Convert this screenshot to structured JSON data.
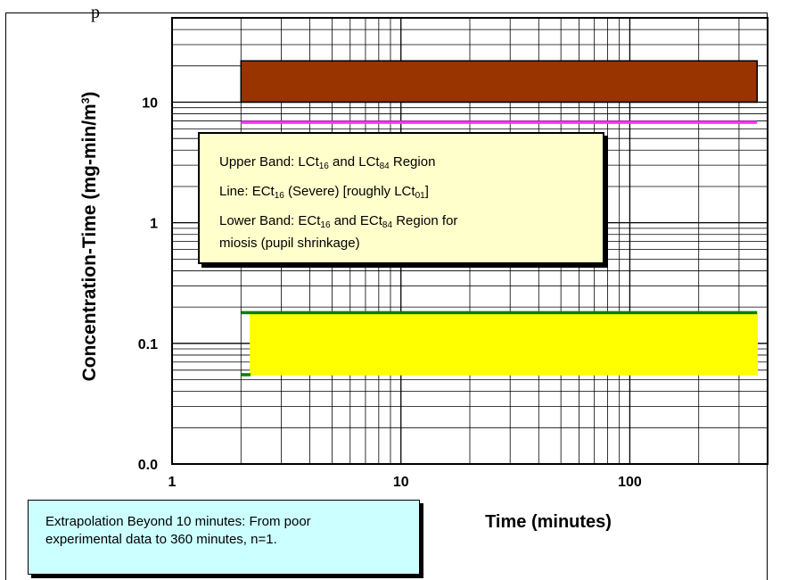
{
  "header_fragment": "p",
  "chart_data": {
    "type": "area",
    "xlabel": "Time (minutes)",
    "ylabel_html": "Concentration-Time (mg-min/m<tspan baseline-shift=\"super\" font-size=\"12\">3</tspan>)",
    "ylabel": "Concentration-Time (mg-min/m3)",
    "x_scale": "log",
    "y_scale": "log",
    "xlim": [
      1,
      400
    ],
    "ylim": [
      0.01,
      50
    ],
    "grid": true,
    "x_ticks": [
      {
        "value": 1,
        "label": "1"
      },
      {
        "value": 10,
        "label": "10"
      },
      {
        "value": 100,
        "label": "100"
      }
    ],
    "y_ticks": [
      {
        "value": 0.01,
        "label": "0.0"
      },
      {
        "value": 0.1,
        "label": "0.1"
      },
      {
        "value": 1,
        "label": "1"
      },
      {
        "value": 10,
        "label": "10"
      }
    ],
    "series": [
      {
        "kind": "band",
        "x": [
          2,
          360
        ],
        "y_low": 10,
        "y_high": 22,
        "fill": "#993300",
        "stroke": "#000000"
      },
      {
        "kind": "line",
        "x": [
          2,
          360
        ],
        "y": 6.8,
        "color": "#ff33ff"
      },
      {
        "kind": "band",
        "x": [
          2.2,
          360
        ],
        "y_low": 0.055,
        "y_high": 0.175,
        "fill": "#ffff00",
        "stroke": "#ffff00"
      },
      {
        "kind": "line",
        "x": [
          2,
          360
        ],
        "y": 0.18,
        "color": "#008000"
      },
      {
        "kind": "line",
        "x": [
          2,
          2.2
        ],
        "y": 0.055,
        "color": "#008000"
      }
    ]
  },
  "legend": {
    "upper_band": {
      "prefix": "Upper Band:  LCt",
      "sub1": "16",
      "mid": " and LCt",
      "sub2": "84",
      "suffix": " Region"
    },
    "line": {
      "prefix": "Line:  ECt",
      "sub1": "16",
      "mid": " (Severe) [roughly LCt",
      "sub2": "01",
      "suffix": "]"
    },
    "lower_band": {
      "prefix": "Lower Band:  ECt",
      "sub1": "16",
      "mid": " and ECt",
      "sub2": "84",
      "suffix": " Region for",
      "line2": "miosis (pupil shrinkage)"
    }
  },
  "note": {
    "line1": "Extrapolation Beyond 10 minutes:  From poor",
    "line2": "experimental data to 360 minutes, n=1."
  }
}
